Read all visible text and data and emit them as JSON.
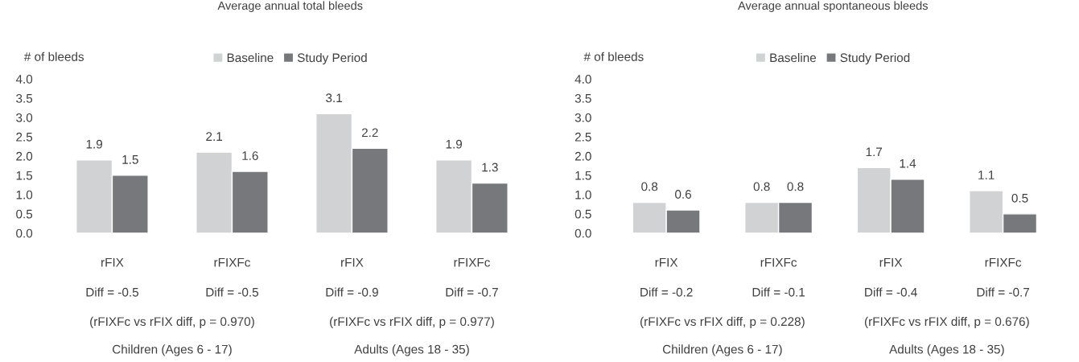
{
  "chart_data": [
    {
      "type": "bar",
      "title": "Average annual total bleeds",
      "ylabel": "# of bleeds",
      "categories": [
        "rFIX",
        "rFIXFc",
        "rFIX",
        "rFIXFc"
      ],
      "series": [
        {
          "name": "Baseline",
          "color": "#d1d2d4",
          "values": [
            1.9,
            2.1,
            3.1,
            1.9
          ]
        },
        {
          "name": "Study Period",
          "color": "#77787b",
          "values": [
            1.5,
            1.6,
            2.2,
            1.3
          ]
        }
      ],
      "ylim": [
        0,
        4
      ],
      "yticks": [
        {
          "value": 0,
          "label": "0.0"
        },
        {
          "value": 0.5,
          "label": "0.5"
        },
        {
          "value": 1,
          "label": "1.0"
        },
        {
          "value": 1.5,
          "label": "1.5"
        },
        {
          "value": 2,
          "label": "2.0"
        },
        {
          "value": 2.5,
          "label": "2.5"
        },
        {
          "value": 3,
          "label": "3.0"
        },
        {
          "value": 3.5,
          "label": "3.5"
        },
        {
          "value": 4,
          "label": "4.0"
        }
      ],
      "data_labels": true,
      "legend": "top",
      "grid": false,
      "annotations": [
        "Diff = -0.5",
        "Diff = -0.5",
        "Diff = -0.9",
        "Diff = -0.7",
        "(rFIXFc vs rFIX diff, p = 0.970)",
        "(rFIXFc vs rFIX diff, p = 0.977)",
        "Children (Ages 6 - 17)",
        "Adults (Ages 18 - 35)"
      ]
    },
    {
      "type": "bar",
      "title": "Average annual spontaneous bleeds",
      "ylabel": "# of bleeds",
      "categories": [
        "rFIX",
        "rFIXFc",
        "rFIX",
        "rFIXFc"
      ],
      "series": [
        {
          "name": "Baseline",
          "color": "#d1d2d4",
          "values": [
            0.8,
            0.8,
            1.7,
            1.1
          ]
        },
        {
          "name": "Study Period",
          "color": "#77787b",
          "values": [
            0.6,
            0.8,
            1.4,
            0.5
          ]
        }
      ],
      "ylim": [
        0,
        4
      ],
      "yticks": [
        {
          "value": 0,
          "label": "0.0"
        },
        {
          "value": 0.5,
          "label": "0.5"
        },
        {
          "value": 1,
          "label": "1.0"
        },
        {
          "value": 1.5,
          "label": "1.5"
        },
        {
          "value": 2,
          "label": "2.0"
        },
        {
          "value": 2.5,
          "label": "2.5"
        },
        {
          "value": 3,
          "label": "3.0"
        },
        {
          "value": 3.5,
          "label": "3.5"
        },
        {
          "value": 4,
          "label": "4.0"
        }
      ],
      "data_labels": true,
      "legend": "top",
      "grid": false,
      "annotations": [
        "Diff = -0.2",
        "Diff = -0.1",
        "Diff = -0.4",
        "Diff = -0.7",
        "(rFIXFc vs rFIX diff, p = 0.228)",
        "(rFIXFc vs rFIX diff, p = 0.676)",
        "Children (Ages 6 - 17)",
        "Adults (Ages 18 - 35)"
      ]
    }
  ]
}
